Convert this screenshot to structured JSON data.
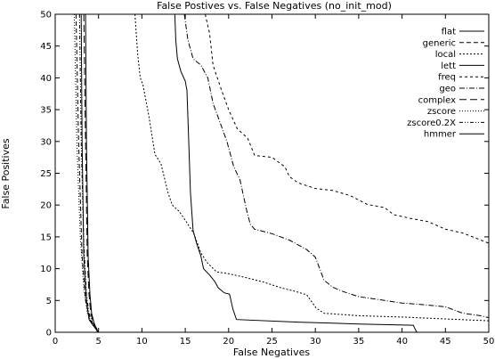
{
  "chart_data": {
    "type": "line",
    "title": "False Postives vs. False Negatives (no_init_mod)",
    "xlabel": "False Negatives",
    "ylabel": "False Positives",
    "xlim": [
      0,
      50
    ],
    "ylim": [
      0,
      50
    ],
    "xticks": [
      0,
      5,
      10,
      15,
      20,
      25,
      30,
      35,
      40,
      45,
      50
    ],
    "yticks": [
      0,
      5,
      10,
      15,
      20,
      25,
      30,
      35,
      40,
      45,
      50
    ],
    "grid": false,
    "legend_position": "top-right",
    "series": [
      {
        "name": "flat",
        "dash": "",
        "points": [
          [
            13.8,
            50
          ],
          [
            13.9,
            46
          ],
          [
            14.1,
            43
          ],
          [
            14.5,
            41
          ],
          [
            15.0,
            39.5
          ],
          [
            15.2,
            38
          ],
          [
            15.4,
            30
          ],
          [
            15.6,
            22
          ],
          [
            15.9,
            16
          ],
          [
            16.3,
            14
          ],
          [
            16.8,
            12
          ],
          [
            17.1,
            10
          ],
          [
            17.8,
            9
          ],
          [
            18.4,
            8
          ],
          [
            18.8,
            7
          ],
          [
            19.5,
            6.2
          ],
          [
            20.1,
            6
          ],
          [
            20.5,
            3.6
          ],
          [
            20.9,
            2
          ],
          [
            28,
            1.6
          ],
          [
            35,
            1.3
          ],
          [
            41.3,
            1.1
          ],
          [
            41.5,
            0.5
          ],
          [
            41.7,
            0
          ]
        ]
      },
      {
        "name": "generic",
        "dash": "5,3",
        "points": [
          [
            2.4,
            50
          ],
          [
            2.7,
            30
          ],
          [
            3.1,
            12
          ],
          [
            3.5,
            5
          ],
          [
            4.0,
            2
          ],
          [
            4.6,
            1
          ],
          [
            4.9,
            0.3
          ],
          [
            5.0,
            0
          ]
        ]
      },
      {
        "name": "local",
        "dash": "2,2",
        "points": [
          [
            9.2,
            50
          ],
          [
            9.5,
            44
          ],
          [
            9.8,
            40
          ],
          [
            10.1,
            39
          ],
          [
            10.8,
            34
          ],
          [
            11.5,
            28
          ],
          [
            12.2,
            26.5
          ],
          [
            13.0,
            22
          ],
          [
            13.5,
            20
          ],
          [
            14.3,
            19
          ],
          [
            15.3,
            17
          ],
          [
            16.0,
            15.5
          ],
          [
            16.8,
            12.5
          ],
          [
            17.5,
            11
          ],
          [
            18.6,
            9.5
          ],
          [
            20,
            9.2
          ],
          [
            22,
            8.6
          ],
          [
            24,
            7.9
          ],
          [
            26,
            7.0
          ],
          [
            27.5,
            6.5
          ],
          [
            29,
            5.9
          ],
          [
            30.1,
            3.8
          ],
          [
            31,
            3.0
          ],
          [
            35,
            2.6
          ],
          [
            40,
            2.4
          ],
          [
            45,
            2.1
          ],
          [
            50,
            1.8
          ]
        ]
      },
      {
        "name": "lett",
        "dash": "",
        "points": [
          [
            3.0,
            50
          ],
          [
            3.1,
            30
          ],
          [
            3.3,
            12
          ],
          [
            3.6,
            5
          ],
          [
            3.9,
            2
          ],
          [
            4.3,
            1.2
          ],
          [
            4.7,
            0.5
          ],
          [
            4.9,
            0
          ]
        ]
      },
      {
        "name": "freq",
        "dash": "3,3",
        "points": [
          [
            17.3,
            50
          ],
          [
            17.8,
            47
          ],
          [
            18.2,
            42
          ],
          [
            18.7,
            40
          ],
          [
            19.2,
            38
          ],
          [
            20,
            35
          ],
          [
            21,
            32
          ],
          [
            22.2,
            30.5
          ],
          [
            23,
            27.8
          ],
          [
            25,
            27.5
          ],
          [
            26.5,
            26
          ],
          [
            27,
            24.5
          ],
          [
            28,
            23.5
          ],
          [
            30,
            22.6
          ],
          [
            32,
            22.3
          ],
          [
            34,
            21.5
          ],
          [
            36,
            20.1
          ],
          [
            38,
            19.6
          ],
          [
            39,
            18.5
          ],
          [
            41,
            17.9
          ],
          [
            43,
            17.4
          ],
          [
            45,
            16.2
          ],
          [
            47,
            15.6
          ],
          [
            50,
            14.0
          ]
        ]
      },
      {
        "name": "geo",
        "dash": "6,2,1,2",
        "points": [
          [
            14.9,
            50
          ],
          [
            15.3,
            46
          ],
          [
            15.9,
            43
          ],
          [
            16.8,
            42
          ],
          [
            17.6,
            40
          ],
          [
            18.2,
            36
          ],
          [
            19.0,
            33
          ],
          [
            19.8,
            30
          ],
          [
            20.6,
            26
          ],
          [
            21.3,
            24
          ],
          [
            22.1,
            19
          ],
          [
            22.5,
            17
          ],
          [
            23,
            16.2
          ],
          [
            25,
            15.5
          ],
          [
            27,
            14.5
          ],
          [
            29,
            13.0
          ],
          [
            30,
            11.8
          ],
          [
            30.5,
            10
          ],
          [
            31,
            8.2
          ],
          [
            32,
            7.1
          ],
          [
            33,
            6.5
          ],
          [
            35,
            5.6
          ],
          [
            38,
            5.0
          ],
          [
            40,
            4.6
          ],
          [
            42,
            4.4
          ],
          [
            45,
            4.0
          ],
          [
            47,
            3.0
          ],
          [
            49,
            2.6
          ],
          [
            50,
            2.3
          ]
        ]
      },
      {
        "name": "complex",
        "dash": "8,4",
        "points": [
          [
            3.3,
            50
          ],
          [
            3.5,
            30
          ],
          [
            3.7,
            12
          ],
          [
            3.9,
            6
          ],
          [
            4.1,
            3
          ],
          [
            4.4,
            1.5
          ],
          [
            4.8,
            0.5
          ],
          [
            4.9,
            0
          ]
        ]
      },
      {
        "name": "zscore",
        "dash": "1,2",
        "points": [
          [
            2.2,
            50
          ],
          [
            2.5,
            30
          ],
          [
            2.9,
            15
          ],
          [
            3.3,
            7
          ],
          [
            3.7,
            3
          ],
          [
            4.2,
            1.5
          ],
          [
            4.7,
            0.6
          ],
          [
            4.9,
            0
          ]
        ]
      },
      {
        "name": "zscore0.2X",
        "dash": "4,2,1,2,1,2",
        "points": [
          [
            2.8,
            50
          ],
          [
            3.0,
            30
          ],
          [
            3.3,
            14
          ],
          [
            3.6,
            6
          ],
          [
            3.9,
            3
          ],
          [
            4.3,
            1.6
          ],
          [
            4.7,
            0.6
          ],
          [
            4.9,
            0
          ]
        ]
      },
      {
        "name": "hmmer",
        "dash": "",
        "points": [
          [
            3.5,
            50
          ],
          [
            3.6,
            30
          ],
          [
            3.8,
            12
          ],
          [
            4.0,
            6
          ],
          [
            4.2,
            3
          ],
          [
            4.5,
            1.4
          ],
          [
            4.8,
            0.4
          ],
          [
            5.0,
            0
          ]
        ]
      }
    ]
  }
}
